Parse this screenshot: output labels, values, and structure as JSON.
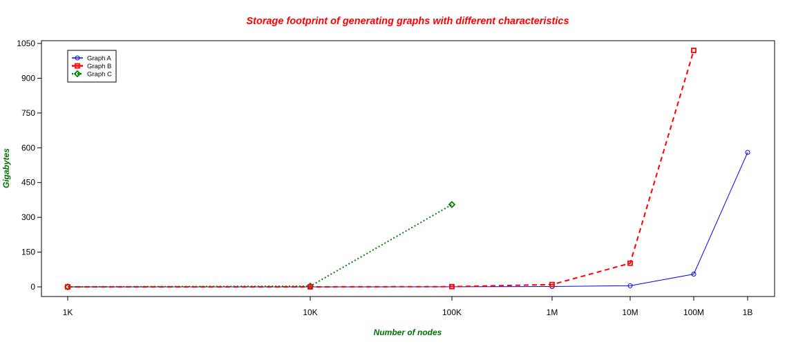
{
  "chart_data": {
    "type": "line",
    "title": "Storage footprint of generating graphs with different characteristics",
    "xlabel": "Number of nodes",
    "ylabel": "Gigabytes",
    "x_scale": "position-categorical",
    "categories": [
      "1K",
      "10K",
      "100K",
      "1M",
      "10M",
      "100M",
      "1B"
    ],
    "ylim": [
      -40,
      1060
    ],
    "yticks": [
      0,
      150,
      300,
      450,
      600,
      750,
      900,
      1050
    ],
    "grid": false,
    "legend_position": "top-left",
    "series": [
      {
        "name": "Graph A",
        "color": "#0000ff",
        "line_style": "solid",
        "marker": "circle",
        "x": [
          "1K",
          "10K",
          "100K",
          "1M",
          "10M",
          "100M",
          "1B"
        ],
        "values": [
          0,
          0,
          0.3,
          1.5,
          5,
          55,
          580
        ]
      },
      {
        "name": "Graph B",
        "color": "#ff0000",
        "line_style": "dashed",
        "marker": "square",
        "x": [
          "1K",
          "10K",
          "100K",
          "1M",
          "10M",
          "100M"
        ],
        "values": [
          0,
          0,
          1,
          10,
          102,
          1020
        ]
      },
      {
        "name": "Graph C",
        "color": "#008000",
        "line_style": "dotted",
        "marker": "diamond",
        "x": [
          "1K",
          "10K",
          "100K"
        ],
        "values": [
          0,
          3,
          355
        ]
      }
    ],
    "colors": {
      "title": "#ff0000",
      "xlabel": "#007000",
      "ylabel": "#007000"
    }
  }
}
